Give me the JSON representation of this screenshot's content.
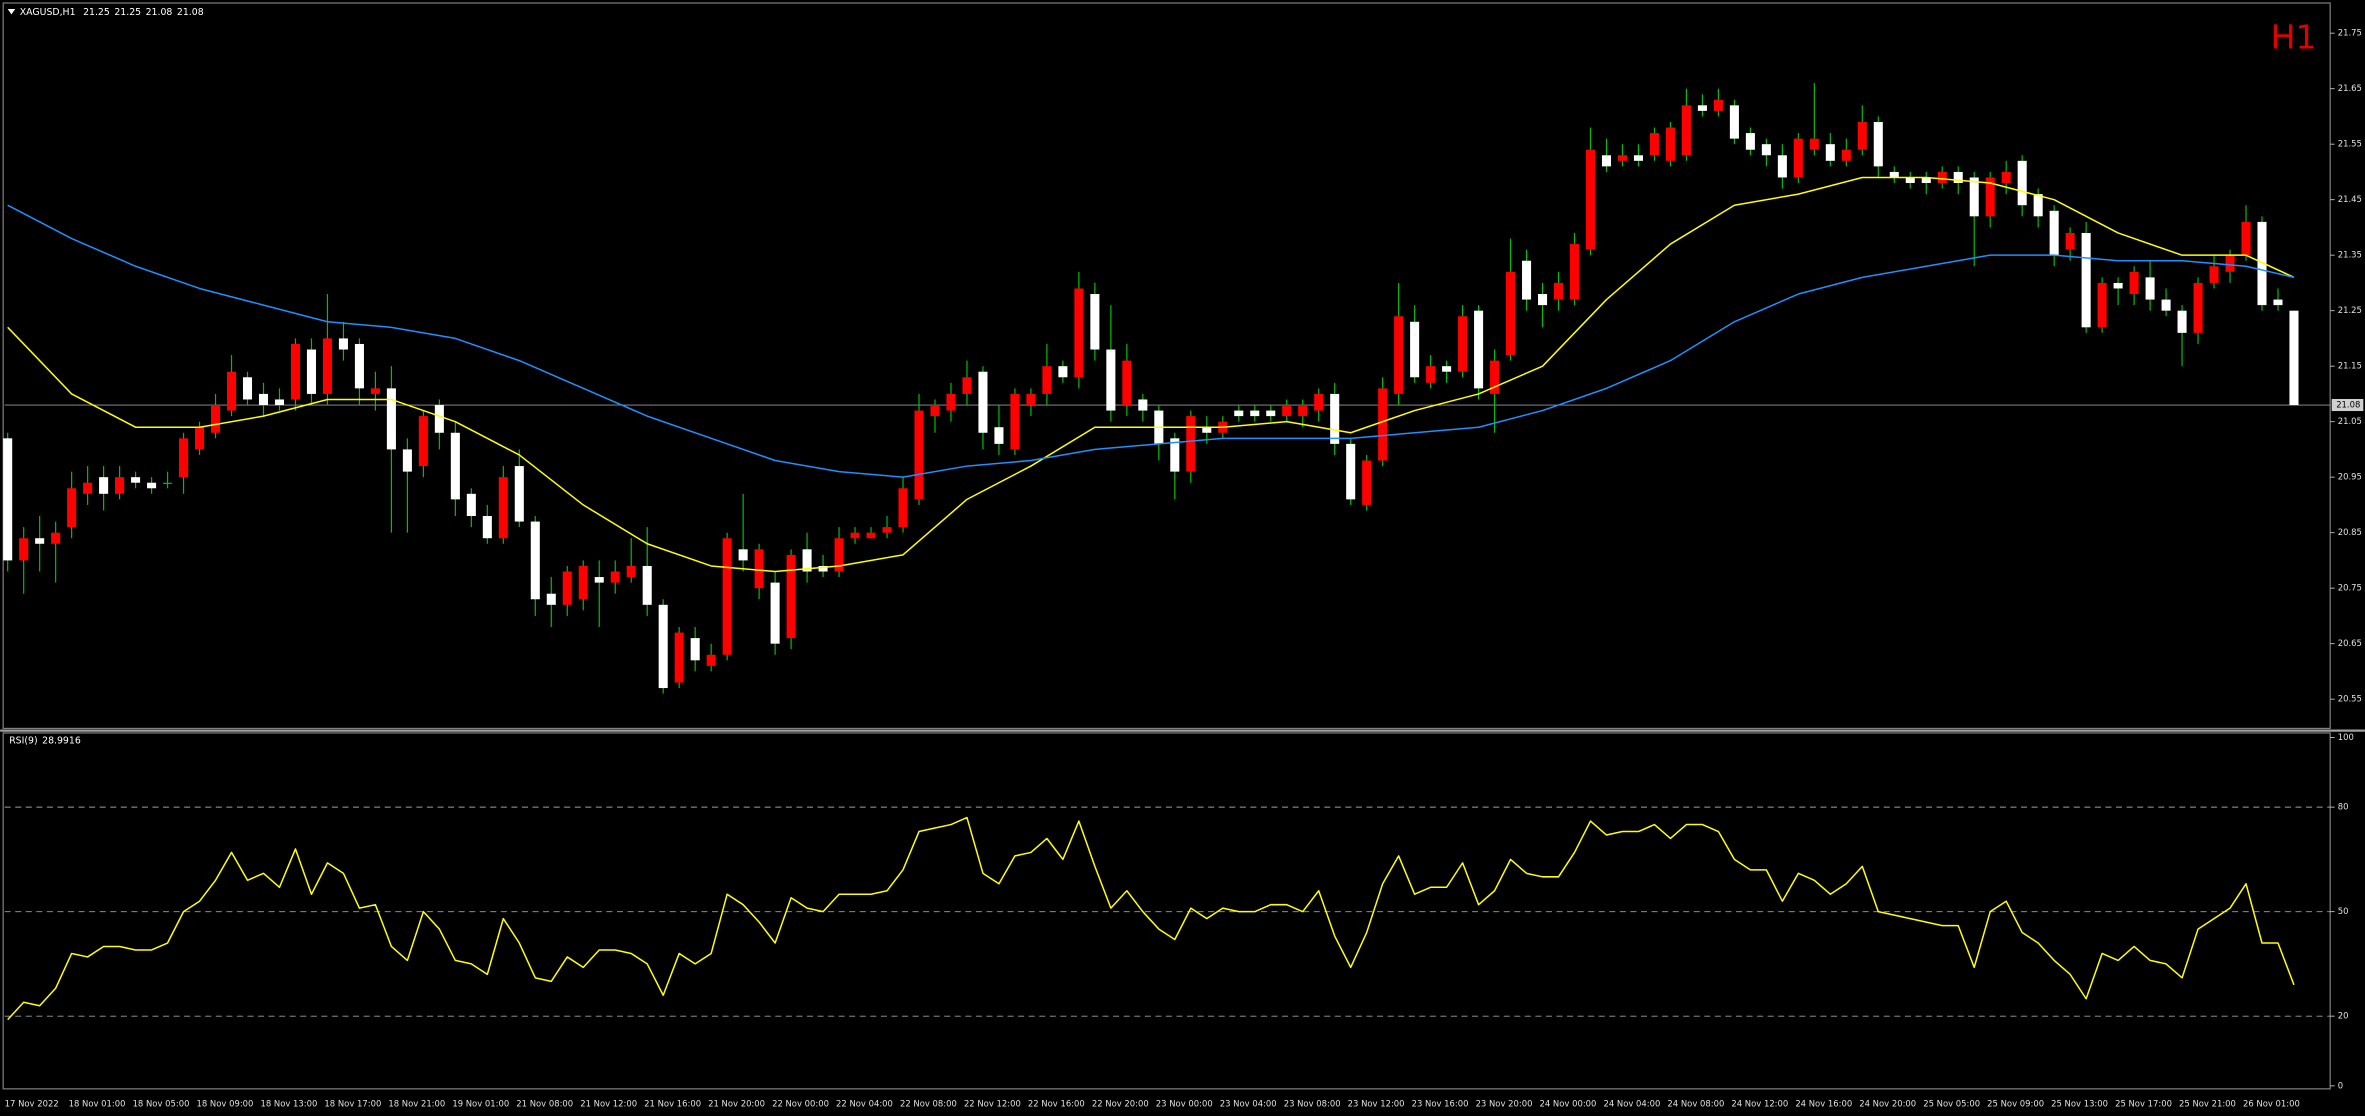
{
  "chart_data": [
    {
      "type": "candlestick",
      "title": "XAGUSD,H1",
      "period_label": "H1",
      "ylim": [
        20.5,
        21.8
      ],
      "yticks": [
        21.75,
        21.65,
        21.55,
        21.45,
        21.35,
        21.25,
        21.15,
        21.05,
        20.95,
        20.85,
        20.75,
        20.65,
        20.55
      ],
      "categories": [
        "17 Nov 2022",
        null,
        null,
        null,
        "18 Nov 01:00",
        null,
        null,
        null,
        "18 Nov 05:00",
        null,
        null,
        null,
        "18 Nov 09:00",
        null,
        null,
        null,
        "18 Nov 13:00",
        null,
        null,
        null,
        "18 Nov 17:00",
        null,
        null,
        null,
        "18 Nov 21:00",
        null,
        null,
        null,
        "19 Nov 01:00",
        null,
        null,
        null,
        "21 Nov 08:00",
        null,
        null,
        null,
        "21 Nov 12:00",
        null,
        null,
        null,
        "21 Nov 16:00",
        null,
        null,
        null,
        "21 Nov 20:00",
        null,
        null,
        null,
        "22 Nov 00:00",
        null,
        null,
        null,
        "22 Nov 04:00",
        null,
        null,
        null,
        "22 Nov 08:00",
        null,
        null,
        null,
        "22 Nov 12:00",
        null,
        null,
        null,
        "22 Nov 16:00",
        null,
        null,
        null,
        "22 Nov 20:00",
        null,
        null,
        null,
        "23 Nov 00:00",
        null,
        null,
        null,
        "23 Nov 04:00",
        null,
        null,
        null,
        "23 Nov 08:00",
        null,
        null,
        null,
        "23 Nov 12:00",
        null,
        null,
        null,
        "23 Nov 16:00",
        null,
        null,
        null,
        "23 Nov 20:00",
        null,
        null,
        null,
        "24 Nov 00:00",
        null,
        null,
        null,
        "24 Nov 04:00",
        null,
        null,
        null,
        "24 Nov 08:00",
        null,
        null,
        null,
        "24 Nov 12:00",
        null,
        null,
        null,
        "24 Nov 16:00",
        null,
        null,
        null,
        "24 Nov 20:00",
        null,
        null,
        null,
        "25 Nov 05:00",
        null,
        null,
        null,
        "25 Nov 09:00",
        null,
        null,
        null,
        "25 Nov 13:00",
        null,
        null,
        null,
        "25 Nov 17:00",
        null,
        null,
        null,
        "25 Nov 21:00",
        null,
        null,
        null,
        "26 Nov 01:00",
        null,
        null,
        null
      ],
      "series": [
        {
          "type": "candlestick",
          "up_color": "#ff0000",
          "down_color": "#ffffff",
          "wick_color": "#00c000",
          "open": [
            21.02,
            20.8,
            20.84,
            20.83,
            20.86,
            20.92,
            20.95,
            20.92,
            20.95,
            20.94,
            20.94,
            20.95,
            21.0,
            21.03,
            21.07,
            21.13,
            21.1,
            21.09,
            21.09,
            21.18,
            21.1,
            21.2,
            21.19,
            21.1,
            21.11,
            21.0,
            20.97,
            21.08,
            21.03,
            20.92,
            20.88,
            20.84,
            20.97,
            20.87,
            20.74,
            20.72,
            20.73,
            20.77,
            20.76,
            20.77,
            20.79,
            20.72,
            20.58,
            20.66,
            20.61,
            20.63,
            20.82,
            20.75,
            20.76,
            20.66,
            20.82,
            20.79,
            20.78,
            20.84,
            20.84,
            20.85,
            20.86,
            20.91,
            21.06,
            21.07,
            21.1,
            21.14,
            21.04,
            21.0,
            21.08,
            21.1,
            21.15,
            21.13,
            21.28,
            21.18,
            21.08,
            21.09,
            21.07,
            21.02,
            20.96,
            21.04,
            21.03,
            21.07,
            21.07,
            21.07,
            21.06,
            21.06,
            21.07,
            21.1,
            21.01,
            20.9,
            20.98,
            21.1,
            21.23,
            21.12,
            21.15,
            21.14,
            21.25,
            21.1,
            21.17,
            21.34,
            21.28,
            21.27,
            21.27,
            21.36,
            21.53,
            21.52,
            21.53,
            21.53,
            21.52,
            21.53,
            21.62,
            21.61,
            21.62,
            21.57,
            21.55,
            21.53,
            21.49,
            21.54,
            21.55,
            21.52,
            21.54,
            21.59,
            21.5,
            21.49,
            21.49,
            21.48,
            21.5,
            21.49,
            21.42,
            21.48,
            21.52,
            21.46,
            21.43,
            21.36,
            21.39,
            21.22,
            21.3,
            21.28,
            21.31,
            21.27,
            21.25,
            21.21,
            21.3,
            21.32,
            21.35,
            21.41,
            21.27,
            21.25
          ],
          "high": [
            21.03,
            20.86,
            20.88,
            20.87,
            20.96,
            20.97,
            20.97,
            20.97,
            20.96,
            20.95,
            20.96,
            21.03,
            21.05,
            21.1,
            21.17,
            21.14,
            21.12,
            21.11,
            21.2,
            21.2,
            21.28,
            21.23,
            21.2,
            21.14,
            21.15,
            21.02,
            21.07,
            21.09,
            21.05,
            20.93,
            20.9,
            20.97,
            21.0,
            20.88,
            20.77,
            20.79,
            20.8,
            20.8,
            20.8,
            20.84,
            20.86,
            20.73,
            20.68,
            20.68,
            20.65,
            20.85,
            20.92,
            20.83,
            20.78,
            20.82,
            20.85,
            20.81,
            20.86,
            20.86,
            20.86,
            20.88,
            20.95,
            21.1,
            21.09,
            21.12,
            21.16,
            21.15,
            21.08,
            21.11,
            21.11,
            21.19,
            21.16,
            21.32,
            21.3,
            21.26,
            21.19,
            21.1,
            21.08,
            21.03,
            21.07,
            21.06,
            21.06,
            21.08,
            21.08,
            21.08,
            21.09,
            21.09,
            21.11,
            21.12,
            21.02,
            20.99,
            21.13,
            21.3,
            21.26,
            21.17,
            21.16,
            21.26,
            21.26,
            21.18,
            21.38,
            21.36,
            21.3,
            21.32,
            21.39,
            21.58,
            21.56,
            21.55,
            21.55,
            21.58,
            21.59,
            21.65,
            21.64,
            21.65,
            21.63,
            21.58,
            21.56,
            21.55,
            21.57,
            21.66,
            21.57,
            21.56,
            21.62,
            21.6,
            21.51,
            21.5,
            21.5,
            21.51,
            21.51,
            21.5,
            21.5,
            21.52,
            21.53,
            21.47,
            21.44,
            21.4,
            21.41,
            21.31,
            21.31,
            21.33,
            21.34,
            21.29,
            21.26,
            21.31,
            21.35,
            21.36,
            21.44,
            21.42,
            21.29,
            21.25
          ],
          "low": [
            20.78,
            20.74,
            20.78,
            20.76,
            20.84,
            20.9,
            20.89,
            20.91,
            20.93,
            20.92,
            20.93,
            20.92,
            20.99,
            21.02,
            21.06,
            21.08,
            21.06,
            21.07,
            21.07,
            21.08,
            21.08,
            21.16,
            21.08,
            21.07,
            20.85,
            20.85,
            20.95,
            21.0,
            20.88,
            20.86,
            20.83,
            20.83,
            20.86,
            20.7,
            20.68,
            20.7,
            20.71,
            20.68,
            20.74,
            20.76,
            20.7,
            20.56,
            20.57,
            20.6,
            20.6,
            20.62,
            20.78,
            20.73,
            20.63,
            20.64,
            20.76,
            20.77,
            20.77,
            20.83,
            20.84,
            20.84,
            20.85,
            20.9,
            21.03,
            21.05,
            21.08,
            21.0,
            20.99,
            20.99,
            21.06,
            21.08,
            21.12,
            21.11,
            21.16,
            21.05,
            21.06,
            21.05,
            20.98,
            20.91,
            20.94,
            21.01,
            21.02,
            21.05,
            21.05,
            21.05,
            21.05,
            21.04,
            21.05,
            20.99,
            20.9,
            20.89,
            20.97,
            21.08,
            21.12,
            21.11,
            21.12,
            21.13,
            21.09,
            21.03,
            21.16,
            21.25,
            21.22,
            21.25,
            21.26,
            21.35,
            21.5,
            21.51,
            21.51,
            21.52,
            21.51,
            21.52,
            21.6,
            21.6,
            21.55,
            21.53,
            21.51,
            21.47,
            21.48,
            21.53,
            21.51,
            21.51,
            21.53,
            21.49,
            21.48,
            21.47,
            21.46,
            21.47,
            21.46,
            21.33,
            21.4,
            21.46,
            21.42,
            21.4,
            21.33,
            21.34,
            21.21,
            21.21,
            21.26,
            21.26,
            21.25,
            21.24,
            21.15,
            21.19,
            21.29,
            21.3,
            21.34,
            21.25,
            21.25,
            21.08
          ],
          "close": [
            20.8,
            20.84,
            20.83,
            20.85,
            20.93,
            20.94,
            20.92,
            20.95,
            20.94,
            20.93,
            20.94,
            21.02,
            21.04,
            21.08,
            21.14,
            21.09,
            21.08,
            21.08,
            21.19,
            21.1,
            21.2,
            21.18,
            21.11,
            21.11,
            21.0,
            20.96,
            21.06,
            21.03,
            20.91,
            20.88,
            20.84,
            20.95,
            20.87,
            20.73,
            20.72,
            20.78,
            20.79,
            20.76,
            20.78,
            20.79,
            20.72,
            20.57,
            20.67,
            20.62,
            20.63,
            20.84,
            20.8,
            20.82,
            20.65,
            20.81,
            20.78,
            20.78,
            20.84,
            20.85,
            20.85,
            20.86,
            20.93,
            21.07,
            21.08,
            21.1,
            21.13,
            21.03,
            21.01,
            21.1,
            21.1,
            21.15,
            21.13,
            21.29,
            21.18,
            21.07,
            21.16,
            21.07,
            21.01,
            20.96,
            21.06,
            21.03,
            21.05,
            21.06,
            21.06,
            21.06,
            21.08,
            21.08,
            21.1,
            21.01,
            20.91,
            20.98,
            21.11,
            21.24,
            21.13,
            21.15,
            21.14,
            21.24,
            21.11,
            21.16,
            21.32,
            21.27,
            21.26,
            21.3,
            21.37,
            21.54,
            21.51,
            21.53,
            21.52,
            21.57,
            21.58,
            21.62,
            21.61,
            21.63,
            21.56,
            21.54,
            21.53,
            21.49,
            21.56,
            21.56,
            21.52,
            21.54,
            21.59,
            21.51,
            21.49,
            21.48,
            21.48,
            21.5,
            21.48,
            21.42,
            21.49,
            21.5,
            21.44,
            21.42,
            21.35,
            21.39,
            21.22,
            21.3,
            21.29,
            21.32,
            21.27,
            21.25,
            21.21,
            21.3,
            21.33,
            21.35,
            21.41,
            21.26,
            21.26,
            21.08
          ]
        },
        {
          "type": "line",
          "color": "#ffff00",
          "x": [
            0,
            4,
            8,
            12,
            16,
            20,
            24,
            28,
            32,
            36,
            40,
            44,
            48,
            52,
            56,
            60,
            64,
            68,
            72,
            76,
            80,
            84,
            88,
            92,
            96,
            100,
            104,
            108,
            112,
            116,
            120,
            124,
            128,
            132,
            136,
            140,
            143
          ],
          "values": [
            21.22,
            21.1,
            21.04,
            21.04,
            21.06,
            21.09,
            21.09,
            21.05,
            20.99,
            20.9,
            20.83,
            20.79,
            20.78,
            20.79,
            20.81,
            20.91,
            20.97,
            21.04,
            21.04,
            21.04,
            21.05,
            21.03,
            21.07,
            21.1,
            21.15,
            21.27,
            21.37,
            21.44,
            21.46,
            21.49,
            21.49,
            21.48,
            21.45,
            21.39,
            21.35,
            21.35,
            21.31
          ]
        },
        {
          "type": "line",
          "color": "#1e90ff",
          "x": [
            0,
            4,
            8,
            12,
            16,
            20,
            24,
            28,
            32,
            36,
            40,
            44,
            48,
            52,
            56,
            60,
            64,
            68,
            72,
            76,
            80,
            84,
            88,
            92,
            96,
            100,
            104,
            108,
            112,
            116,
            120,
            124,
            128,
            132,
            136,
            140,
            143
          ],
          "values": [
            21.44,
            21.38,
            21.33,
            21.29,
            21.26,
            21.23,
            21.22,
            21.2,
            21.16,
            21.11,
            21.06,
            21.02,
            20.98,
            20.96,
            20.95,
            20.97,
            20.98,
            21.0,
            21.01,
            21.02,
            21.02,
            21.02,
            21.03,
            21.04,
            21.07,
            21.11,
            21.16,
            21.23,
            21.28,
            21.31,
            21.33,
            21.35,
            21.35,
            21.34,
            21.34,
            21.33,
            21.31
          ]
        }
      ]
    },
    {
      "type": "line",
      "title": "RSI(9)",
      "color": "#ffff00",
      "grid": "dashed",
      "ylim": [
        0,
        100
      ],
      "yticks": [
        100,
        80,
        50,
        20,
        0
      ],
      "values": [
        19,
        24,
        23,
        28,
        38,
        37,
        40,
        40,
        39,
        39,
        41,
        50,
        53,
        59,
        67,
        59,
        61,
        57,
        68,
        55,
        64,
        61,
        51,
        52,
        40,
        36,
        50,
        45,
        36,
        35,
        32,
        48,
        41,
        31,
        30,
        37,
        34,
        39,
        39,
        38,
        35,
        26,
        38,
        35,
        38,
        55,
        52,
        47,
        41,
        54,
        51,
        50,
        55,
        55,
        55,
        56,
        62,
        73,
        74,
        75,
        77,
        61,
        58,
        66,
        67,
        71,
        65,
        76,
        63,
        51,
        56,
        50,
        45,
        42,
        51,
        48,
        51,
        50,
        50,
        52,
        52,
        50,
        56,
        43,
        34,
        44,
        58,
        66,
        55,
        57,
        57,
        64,
        52,
        56,
        65,
        61,
        60,
        60,
        67,
        76,
        72,
        73,
        73,
        75,
        71,
        75,
        75,
        73,
        65,
        62,
        62,
        53,
        61,
        59,
        55,
        58,
        63,
        50,
        49,
        48,
        47,
        46,
        46,
        34,
        50,
        53,
        44,
        41,
        36,
        32,
        25,
        38,
        36,
        40,
        36,
        35,
        31,
        45,
        48,
        51,
        58,
        41,
        41,
        28.9916
      ]
    }
  ]
}
